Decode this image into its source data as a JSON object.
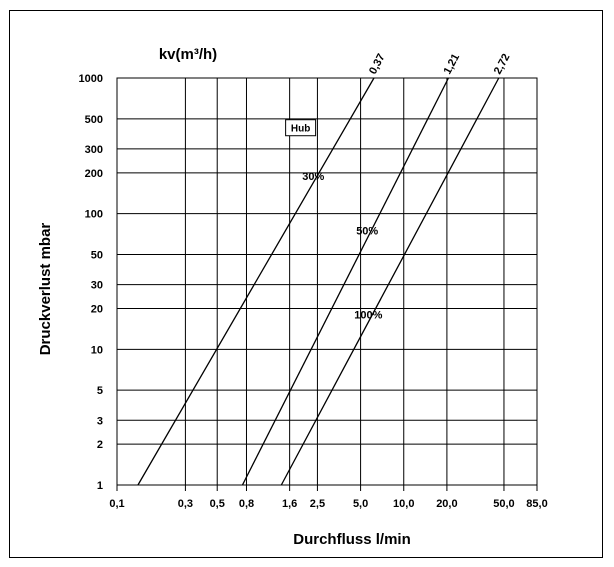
{
  "chart_data": {
    "type": "line",
    "title": "kv(m³/h)",
    "xlabel": "Durchfluss l/min",
    "ylabel": "Druckverlust mbar",
    "x_scale": "log",
    "y_scale": "log",
    "xlim": [
      0.1,
      85.0
    ],
    "ylim": [
      1,
      1000
    ],
    "grid": true,
    "x_ticks": [
      {
        "value": 0.1,
        "label": "0,1"
      },
      {
        "value": 0.3,
        "label": "0,3"
      },
      {
        "value": 0.5,
        "label": "0,5"
      },
      {
        "value": 0.8,
        "label": "0,8"
      },
      {
        "value": 1.6,
        "label": "1,6"
      },
      {
        "value": 2.5,
        "label": "2,5"
      },
      {
        "value": 5.0,
        "label": "5,0"
      },
      {
        "value": 10.0,
        "label": "10,0"
      },
      {
        "value": 20.0,
        "label": "20,0"
      },
      {
        "value": 50.0,
        "label": "50,0"
      },
      {
        "value": 85.0,
        "label": "85,0"
      }
    ],
    "y_ticks": [
      {
        "value": 1,
        "label": "1"
      },
      {
        "value": 2,
        "label": "2"
      },
      {
        "value": 3,
        "label": "3"
      },
      {
        "value": 5,
        "label": "5"
      },
      {
        "value": 10,
        "label": "10"
      },
      {
        "value": 20,
        "label": "20"
      },
      {
        "value": 30,
        "label": "30"
      },
      {
        "value": 50,
        "label": "50"
      },
      {
        "value": 100,
        "label": "100"
      },
      {
        "value": 200,
        "label": "200"
      },
      {
        "value": 300,
        "label": "300"
      },
      {
        "value": 500,
        "label": "500"
      },
      {
        "value": 1000,
        "label": "1000"
      }
    ],
    "series": [
      {
        "name": "0,37",
        "hub": "30%",
        "x": [
          0.14,
          6.2
        ],
        "y": [
          1,
          1000
        ]
      },
      {
        "name": "1,21",
        "hub": "50%",
        "x": [
          0.75,
          20.5
        ],
        "y": [
          1,
          1000
        ]
      },
      {
        "name": "2,72",
        "hub": "100%",
        "x": [
          1.4,
          46.0
        ],
        "y": [
          1,
          1000
        ]
      }
    ],
    "annotations": {
      "hub_box": "Hub"
    }
  }
}
